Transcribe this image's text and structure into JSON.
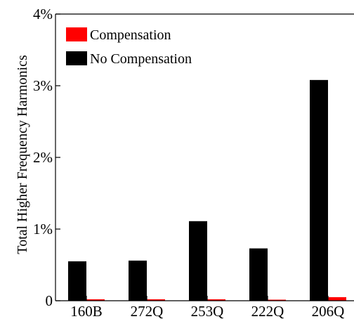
{
  "chart_data": {
    "type": "bar",
    "categories": [
      "160B",
      "272Q",
      "253Q",
      "222Q",
      "206Q"
    ],
    "series": [
      {
        "name": "Compensation",
        "color": "#ff0000",
        "values": [
          0.02,
          0.02,
          0.02,
          0.01,
          0.05
        ]
      },
      {
        "name": "No Compensation",
        "color": "#000000",
        "values": [
          0.55,
          0.56,
          1.11,
          0.73,
          3.08
        ]
      }
    ],
    "title": "",
    "xlabel": "",
    "ylabel": "Total Higher Frequency Harmonics",
    "ylim": [
      0,
      4
    ],
    "yticks": [
      {
        "value": 0,
        "label": "0"
      },
      {
        "value": 1,
        "label": "1%"
      },
      {
        "value": 2,
        "label": "2%"
      },
      {
        "value": 3,
        "label": "3%"
      },
      {
        "value": 4,
        "label": "4%"
      }
    ],
    "grid": false,
    "legend_position": "top-left"
  }
}
